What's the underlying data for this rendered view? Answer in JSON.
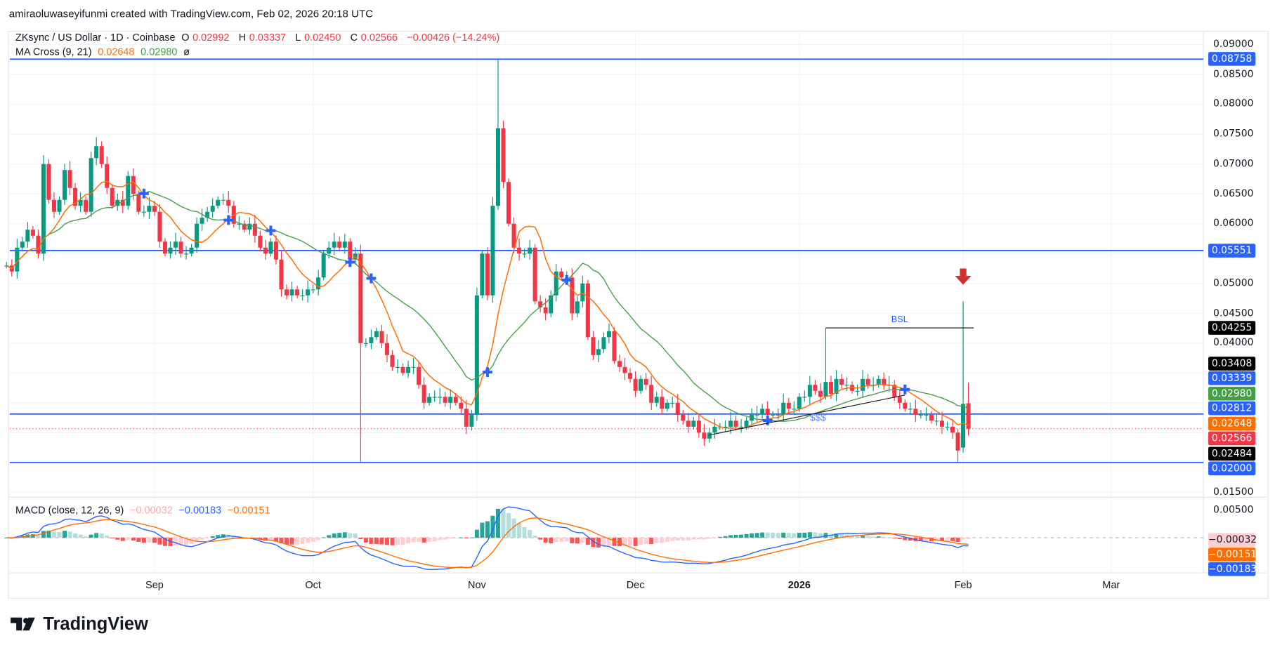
{
  "credit": "amiraoluwaseyifunmi created with TradingView.com, Feb 02, 2026 20:18 UTC",
  "legend": {
    "symbol": "ZKsync / US Dollar · 1D · Coinbase",
    "o_label": "O",
    "o": "0.02992",
    "h_label": "H",
    "h": "0.03337",
    "l_label": "L",
    "l": "0.02450",
    "c_label": "C",
    "c": "0.02566",
    "change": "−0.00426 (−14.24%)",
    "ma_name": "MA Cross (9, 21)",
    "ma_fast": "0.02648",
    "ma_slow": "0.02980",
    "ma_icon": "ø",
    "macd_name": "MACD (close, 12, 26, 9)",
    "macd_hist": "−0.00032",
    "macd_line": "−0.00183",
    "macd_signal": "−0.00151"
  },
  "logo": {
    "text": "TradingView"
  },
  "colors": {
    "up": "#089981",
    "down": "#f23645",
    "ma_fast": "#ff6d00",
    "ma_slow": "#43a047",
    "level": "#2962ff",
    "macd": "#2962ff",
    "signal": "#ff6d00"
  },
  "chart_data": {
    "type": "candlestick",
    "ylim": [
      0.015,
      0.09
    ],
    "y_ticks": [
      "0.09000",
      "0.08500",
      "0.08000",
      "0.07500",
      "0.07000",
      "0.06500",
      "0.06000",
      "0.05000",
      "0.04500",
      "0.04000",
      "0.01500"
    ],
    "macd_ticks": [
      "0.00500"
    ],
    "x_ticks": [
      {
        "date": "2025-09-01",
        "label": "Sep"
      },
      {
        "date": "2025-10-01",
        "label": "Oct"
      },
      {
        "date": "2025-11-01",
        "label": "Nov"
      },
      {
        "date": "2025-12-01",
        "label": "Dec"
      },
      {
        "date": "2026-01-01",
        "label": "2026"
      },
      {
        "date": "2026-02-01",
        "label": "Feb"
      },
      {
        "date": "2026-03-01",
        "label": "Mar"
      }
    ],
    "closes_by_month": [
      {
        "month": "2025-08",
        "first_day": 4,
        "close": [
          0.053,
          0.052,
          0.056,
          0.057,
          0.059,
          0.058,
          0.055,
          0.07,
          0.064,
          0.062,
          0.064,
          0.069,
          0.066,
          0.063,
          0.064,
          0.062,
          0.071,
          0.073,
          0.07,
          0.066,
          0.063,
          0.064,
          0.063,
          0.068,
          0.065,
          0.062,
          0.062,
          0.063
        ]
      },
      {
        "month": "2025-09",
        "first_day": 1,
        "close": [
          0.062,
          0.057,
          0.055,
          0.056,
          0.057,
          0.055,
          0.055,
          0.056,
          0.06,
          0.061,
          0.062,
          0.063,
          0.064,
          0.064,
          0.063,
          0.06,
          0.06,
          0.059,
          0.06,
          0.058,
          0.056,
          0.055,
          0.057,
          0.054,
          0.049,
          0.048,
          0.049,
          0.048,
          0.048,
          0.049
        ]
      },
      {
        "month": "2025-10",
        "first_day": 1,
        "close": [
          0.049,
          0.051,
          0.055,
          0.056,
          0.057,
          0.056,
          0.057,
          0.054,
          0.055,
          0.04,
          0.04,
          0.041,
          0.042,
          0.04,
          0.038,
          0.036,
          0.036,
          0.035,
          0.036,
          0.036,
          0.033,
          0.03,
          0.031,
          0.031,
          0.031,
          0.03,
          0.031,
          0.03,
          0.029,
          0.026,
          0.028
        ]
      },
      {
        "month": "2025-11",
        "first_day": 1,
        "close": [
          0.048,
          0.055,
          0.048,
          0.063,
          0.076,
          0.067,
          0.06,
          0.056,
          0.055,
          0.055,
          0.056,
          0.047,
          0.046,
          0.045,
          0.048,
          0.052,
          0.051,
          0.051,
          0.045,
          0.047,
          0.05,
          0.041,
          0.038,
          0.039,
          0.041,
          0.042,
          0.037,
          0.036,
          0.035,
          0.034
        ]
      },
      {
        "month": "2025-12",
        "first_day": 1,
        "close": [
          0.032,
          0.034,
          0.033,
          0.03,
          0.031,
          0.029,
          0.03,
          0.03,
          0.028,
          0.027,
          0.026,
          0.027,
          0.025,
          0.024,
          0.025,
          0.026,
          0.026,
          0.026,
          0.027,
          0.026,
          0.026,
          0.027,
          0.028,
          0.028,
          0.029,
          0.028,
          0.028,
          0.028,
          0.03,
          0.029,
          0.029
        ]
      },
      {
        "month": "2026-01",
        "first_day": 1,
        "close": [
          0.031,
          0.031,
          0.033,
          0.032,
          0.031,
          0.0335,
          0.0315,
          0.034,
          0.033,
          0.033,
          0.032,
          0.032,
          0.034,
          0.033,
          0.033,
          0.034,
          0.033,
          0.033,
          0.031,
          0.03,
          0.029,
          0.029,
          0.028,
          0.028,
          0.028,
          0.027,
          0.027,
          0.026,
          0.026,
          0.025,
          0.022
        ]
      },
      {
        "month": "2026-02",
        "first_day": 1,
        "close": [
          0.0298,
          0.02566
        ]
      }
    ],
    "extremes": {
      "2025-10-10": {
        "low": 0.02
      },
      "2025-11-05": {
        "high": 0.08758
      },
      "2026-01-06": {
        "high": 0.04255
      },
      "2026-01-31": {
        "low": 0.02
      },
      "2026-02-01": {
        "open": 0.0225,
        "high": 0.047
      },
      "2026-02-02": {
        "open": 0.02992,
        "high": 0.03337,
        "low": 0.0245
      }
    },
    "levels": [
      0.08758,
      0.05551,
      0.02812,
      0.02
    ],
    "current_price": 0.02566,
    "annotations": {
      "bsl": {
        "label": "BSL",
        "price": 0.04255,
        "from": "2026-01-06",
        "to": "2026-02-03"
      },
      "sss": {
        "label": "$$$",
        "date": "2026-01-03",
        "price": 0.0275
      },
      "trendline": {
        "from": {
          "date": "2025-12-15",
          "price": 0.0246
        },
        "to": {
          "date": "2026-01-21",
          "price": 0.0313
        }
      },
      "arrow": {
        "date": "2026-02-01",
        "direction": "down",
        "color": "#d32f2f"
      }
    },
    "price_labels": [
      {
        "value": "0.08758",
        "color": "#2962ff",
        "text_color": "#ffffff"
      },
      {
        "value": "0.05551",
        "color": "#2962ff",
        "text_color": "#ffffff"
      },
      {
        "value": "0.04255",
        "color": "#000000",
        "text_color": "#ffffff"
      },
      {
        "value": "0.03408",
        "color": "#000000",
        "text_color": "#ffffff"
      },
      {
        "value": "0.03339",
        "color": "#2962ff",
        "text_color": "#ffffff"
      },
      {
        "value": "0.02980",
        "color": "#43a047",
        "text_color": "#ffffff"
      },
      {
        "value": "0.02812",
        "color": "#2962ff",
        "text_color": "#ffffff"
      },
      {
        "value": "0.02648",
        "color": "#ff6d00",
        "text_color": "#ffffff"
      },
      {
        "value": "0.02566",
        "color": "#f23645",
        "text_color": "#ffffff"
      },
      {
        "value": "0.02484",
        "color": "#000000",
        "text_color": "#ffffff"
      },
      {
        "value": "0.02000",
        "color": "#2962ff",
        "text_color": "#ffffff"
      }
    ],
    "macd_labels": [
      {
        "value": "-0.00032",
        "color": "#ffcdd2",
        "text_color": "#131722"
      },
      {
        "value": "-0.00151",
        "color": "#ff6d00",
        "text_color": "#ffffff"
      },
      {
        "value": "-0.00183",
        "color": "#2962ff",
        "text_color": "#ffffff"
      }
    ]
  }
}
